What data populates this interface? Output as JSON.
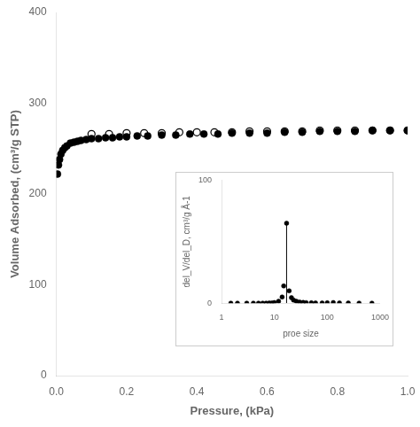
{
  "chart_data": [
    {
      "type": "scatter",
      "xlabel": "Pressure, (kPa)",
      "ylabel": "Volume Adsorbed, (cm³/g STP)",
      "xlim": [
        0,
        1
      ],
      "ylim": [
        0,
        400
      ],
      "xticks": [
        {
          "value": 0,
          "label": "0.0"
        },
        0.2,
        0.4,
        0.6,
        0.8,
        {
          "value": 1.0,
          "label": "1.0"
        }
      ],
      "yticks": [
        0,
        100,
        200,
        300,
        400
      ],
      "grid": false,
      "series": [
        {
          "color": "#000000",
          "marker": "circle",
          "x": [
            0.003,
            0.006,
            0.009,
            0.013,
            0.018,
            0.024,
            0.03,
            0.04,
            0.05,
            0.06,
            0.07,
            0.085,
            0.1,
            0.12,
            0.14,
            0.16,
            0.18,
            0.2,
            0.23,
            0.26,
            0.3,
            0.34,
            0.38,
            0.42,
            0.46,
            0.5,
            0.55,
            0.6,
            0.65,
            0.7,
            0.75,
            0.8,
            0.85,
            0.9,
            0.95,
            1.0
          ],
          "values": [
            222,
            232,
            238,
            244,
            248,
            251,
            253,
            256,
            257,
            258,
            259,
            260,
            261,
            261,
            262,
            262,
            263,
            263,
            264,
            264,
            265,
            265,
            266,
            266,
            266,
            267,
            267,
            267,
            268,
            268,
            269,
            269,
            269,
            270,
            270,
            270
          ]
        },
        {
          "color": "#000000",
          "marker": "open_circle",
          "x": [
            1.0,
            0.95,
            0.9,
            0.85,
            0.8,
            0.75,
            0.7,
            0.65,
            0.6,
            0.55,
            0.5,
            0.45,
            0.4,
            0.35,
            0.3,
            0.25,
            0.2,
            0.15,
            0.1
          ],
          "values": [
            270,
            270,
            270,
            270,
            270,
            270,
            269,
            269,
            269,
            269,
            268,
            268,
            268,
            268,
            267,
            267,
            267,
            266,
            266
          ]
        }
      ]
    },
    {
      "type": "scatter",
      "xlabel": "proe size",
      "ylabel": "del_V/del_D, cm³/g Å-1",
      "log": "x",
      "xlim": [
        1,
        1000
      ],
      "ylim": [
        0,
        100
      ],
      "xticks": [
        1,
        10,
        100,
        1000
      ],
      "yticks": [
        0,
        100
      ],
      "grid": false,
      "series": [
        {
          "type": "line",
          "color": "#000000",
          "line_style": "solid",
          "x": [
            17,
            17
          ],
          "values": [
            0,
            65
          ]
        },
        {
          "type": "scatter",
          "color": "#000000",
          "marker": "circle",
          "x": [
            1.5,
            2,
            3,
            4,
            5,
            6,
            7,
            8,
            9,
            10,
            12,
            14,
            15,
            17,
            19,
            21,
            23,
            26,
            30,
            35,
            40,
            50,
            60,
            80,
            100,
            130,
            170,
            250,
            400,
            700
          ],
          "values": [
            0.0,
            0.0,
            0.0,
            0.0,
            0.0,
            0.0,
            0.05,
            0.1,
            0.2,
            0.5,
            1.5,
            5.0,
            14.0,
            65.0,
            10.0,
            4.5,
            2.5,
            1.5,
            0.9,
            0.6,
            0.4,
            0.3,
            0.2,
            0.15,
            0.3,
            0.5,
            0.2,
            0.1,
            0.05,
            0.0
          ]
        }
      ]
    }
  ]
}
